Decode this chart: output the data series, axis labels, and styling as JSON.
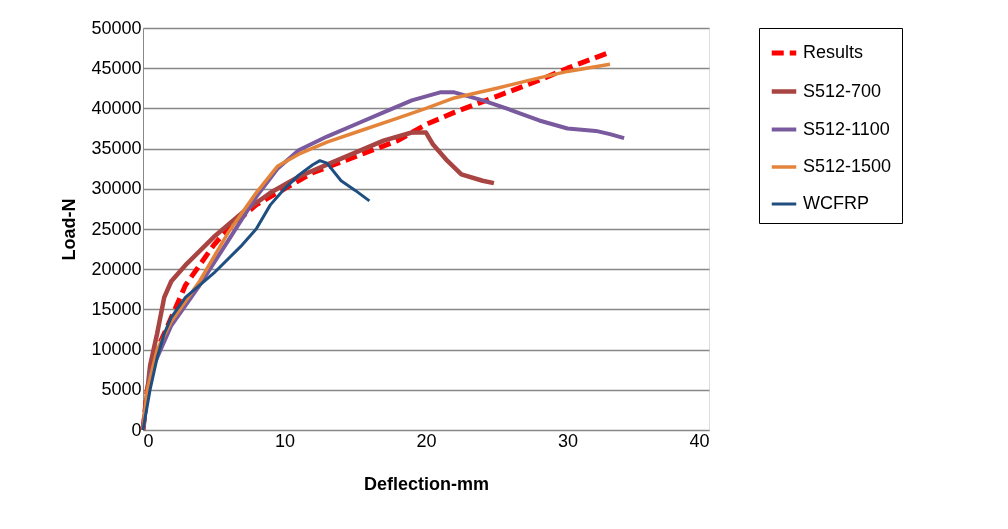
{
  "chart_data": {
    "type": "line",
    "xlabel": "Deflection-mm",
    "ylabel": "Load-N",
    "xlim": [
      0,
      40
    ],
    "xticks": [
      0,
      10,
      20,
      30,
      40
    ],
    "ylim": [
      0,
      50000
    ],
    "yticks": [
      0,
      5000,
      10000,
      15000,
      20000,
      25000,
      30000,
      35000,
      40000,
      45000,
      50000
    ],
    "grid": "y",
    "legend": "right",
    "marker": "none",
    "series": [
      {
        "name": "Results",
        "color": "#ff0000",
        "line_style": "dashed",
        "x": [
          0,
          0.3,
          1,
          2,
          3,
          4,
          5,
          6,
          8,
          10,
          12,
          15,
          18,
          20,
          22,
          25,
          28,
          30,
          33
        ],
        "values": [
          0,
          5000,
          10000,
          14000,
          18000,
          20500,
          23000,
          25000,
          28000,
          30000,
          32000,
          34000,
          36000,
          38000,
          39500,
          41500,
          43500,
          45000,
          47000
        ]
      },
      {
        "name": "S512-700",
        "color": "#a84442",
        "line_style": "solid",
        "x": [
          0,
          0.5,
          1,
          1.5,
          2,
          3,
          5,
          7,
          9,
          11,
          13,
          15,
          17,
          19,
          20,
          20.5,
          21.5,
          22.5,
          24,
          24.8
        ],
        "values": [
          0,
          8000,
          12000,
          16500,
          18500,
          20500,
          24000,
          27000,
          29500,
          31500,
          33000,
          34500,
          36000,
          37000,
          37000,
          35500,
          33500,
          31800,
          31000,
          30700
        ]
      },
      {
        "name": "S512-1100",
        "color": "#7a5a9e",
        "line_style": "solid",
        "x": [
          0,
          0.5,
          2,
          4,
          6,
          8,
          9.5,
          11,
          13,
          15,
          17,
          19,
          21,
          22,
          24,
          26,
          28,
          30,
          32,
          33,
          34
        ],
        "values": [
          0,
          7000,
          13000,
          18000,
          23500,
          29000,
          32500,
          34800,
          36500,
          38000,
          39500,
          41000,
          42000,
          42000,
          41000,
          39800,
          38500,
          37500,
          37200,
          36800,
          36300
        ]
      },
      {
        "name": "S512-1500",
        "color": "#e3843a",
        "line_style": "solid",
        "x": [
          0,
          0.3,
          1,
          2,
          4,
          6,
          8,
          9.5,
          11,
          13,
          15,
          18,
          20,
          22,
          25,
          28,
          30,
          33
        ],
        "values": [
          0,
          5000,
          10000,
          13500,
          18500,
          24500,
          29500,
          32800,
          34300,
          35800,
          37000,
          38800,
          40000,
          41300,
          42500,
          43800,
          44600,
          45500
        ]
      },
      {
        "name": "WCFRP",
        "color": "#1f4e80",
        "line_style": "solid",
        "x": [
          0,
          0.5,
          1,
          1.5,
          2,
          3,
          5,
          7,
          8,
          9,
          10,
          11,
          12,
          12.5,
          13,
          14,
          15,
          16
        ],
        "values": [
          0,
          5000,
          9000,
          12000,
          14000,
          16500,
          19500,
          23000,
          25000,
          28000,
          30000,
          31700,
          33000,
          33500,
          33200,
          31000,
          29800,
          28500
        ]
      }
    ]
  }
}
